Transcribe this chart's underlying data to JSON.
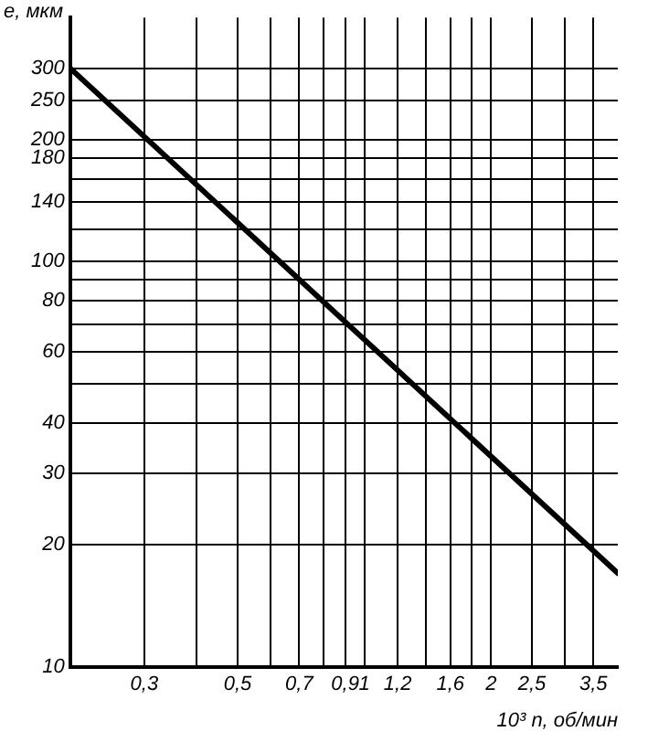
{
  "chart_data": {
    "type": "line",
    "xlabel": "10³ n, об/мин",
    "ylabel": "e, мкм",
    "log": "xy",
    "grid": true,
    "legend": false,
    "marker": "none",
    "line_style": "solid",
    "xlim": [
      0.2,
      4
    ],
    "ylim": [
      10,
      400
    ],
    "xticks": [
      {
        "value": 0.3,
        "label": "0,3"
      },
      {
        "value": 0.4,
        "label": null
      },
      {
        "value": 0.5,
        "label": "0,5"
      },
      {
        "value": 0.6,
        "label": null
      },
      {
        "value": 0.7,
        "label": "0,7"
      },
      {
        "value": 0.8,
        "label": null
      },
      {
        "value": 0.9,
        "label": "0,9"
      },
      1,
      {
        "value": 1.2,
        "label": "1,2"
      },
      {
        "value": 1.4,
        "label": null
      },
      {
        "value": 1.6,
        "label": "1,6"
      },
      {
        "value": 1.8,
        "label": null
      },
      2,
      {
        "value": 2.5,
        "label": "2,5"
      },
      {
        "value": 3,
        "label": null
      },
      {
        "value": 3.5,
        "label": "3,5"
      }
    ],
    "yticks": [
      10,
      20,
      30,
      40,
      {
        "value": 50,
        "label": null
      },
      60,
      {
        "value": 70,
        "label": null
      },
      80,
      {
        "value": 90,
        "label": null
      },
      100,
      {
        "value": 120,
        "label": null
      },
      140,
      {
        "value": 160,
        "label": null
      },
      180,
      200,
      250,
      300
    ],
    "series": [
      {
        "color": "#000000",
        "x": [
          0.2,
          4
        ],
        "values": [
          300,
          17
        ]
      }
    ]
  }
}
